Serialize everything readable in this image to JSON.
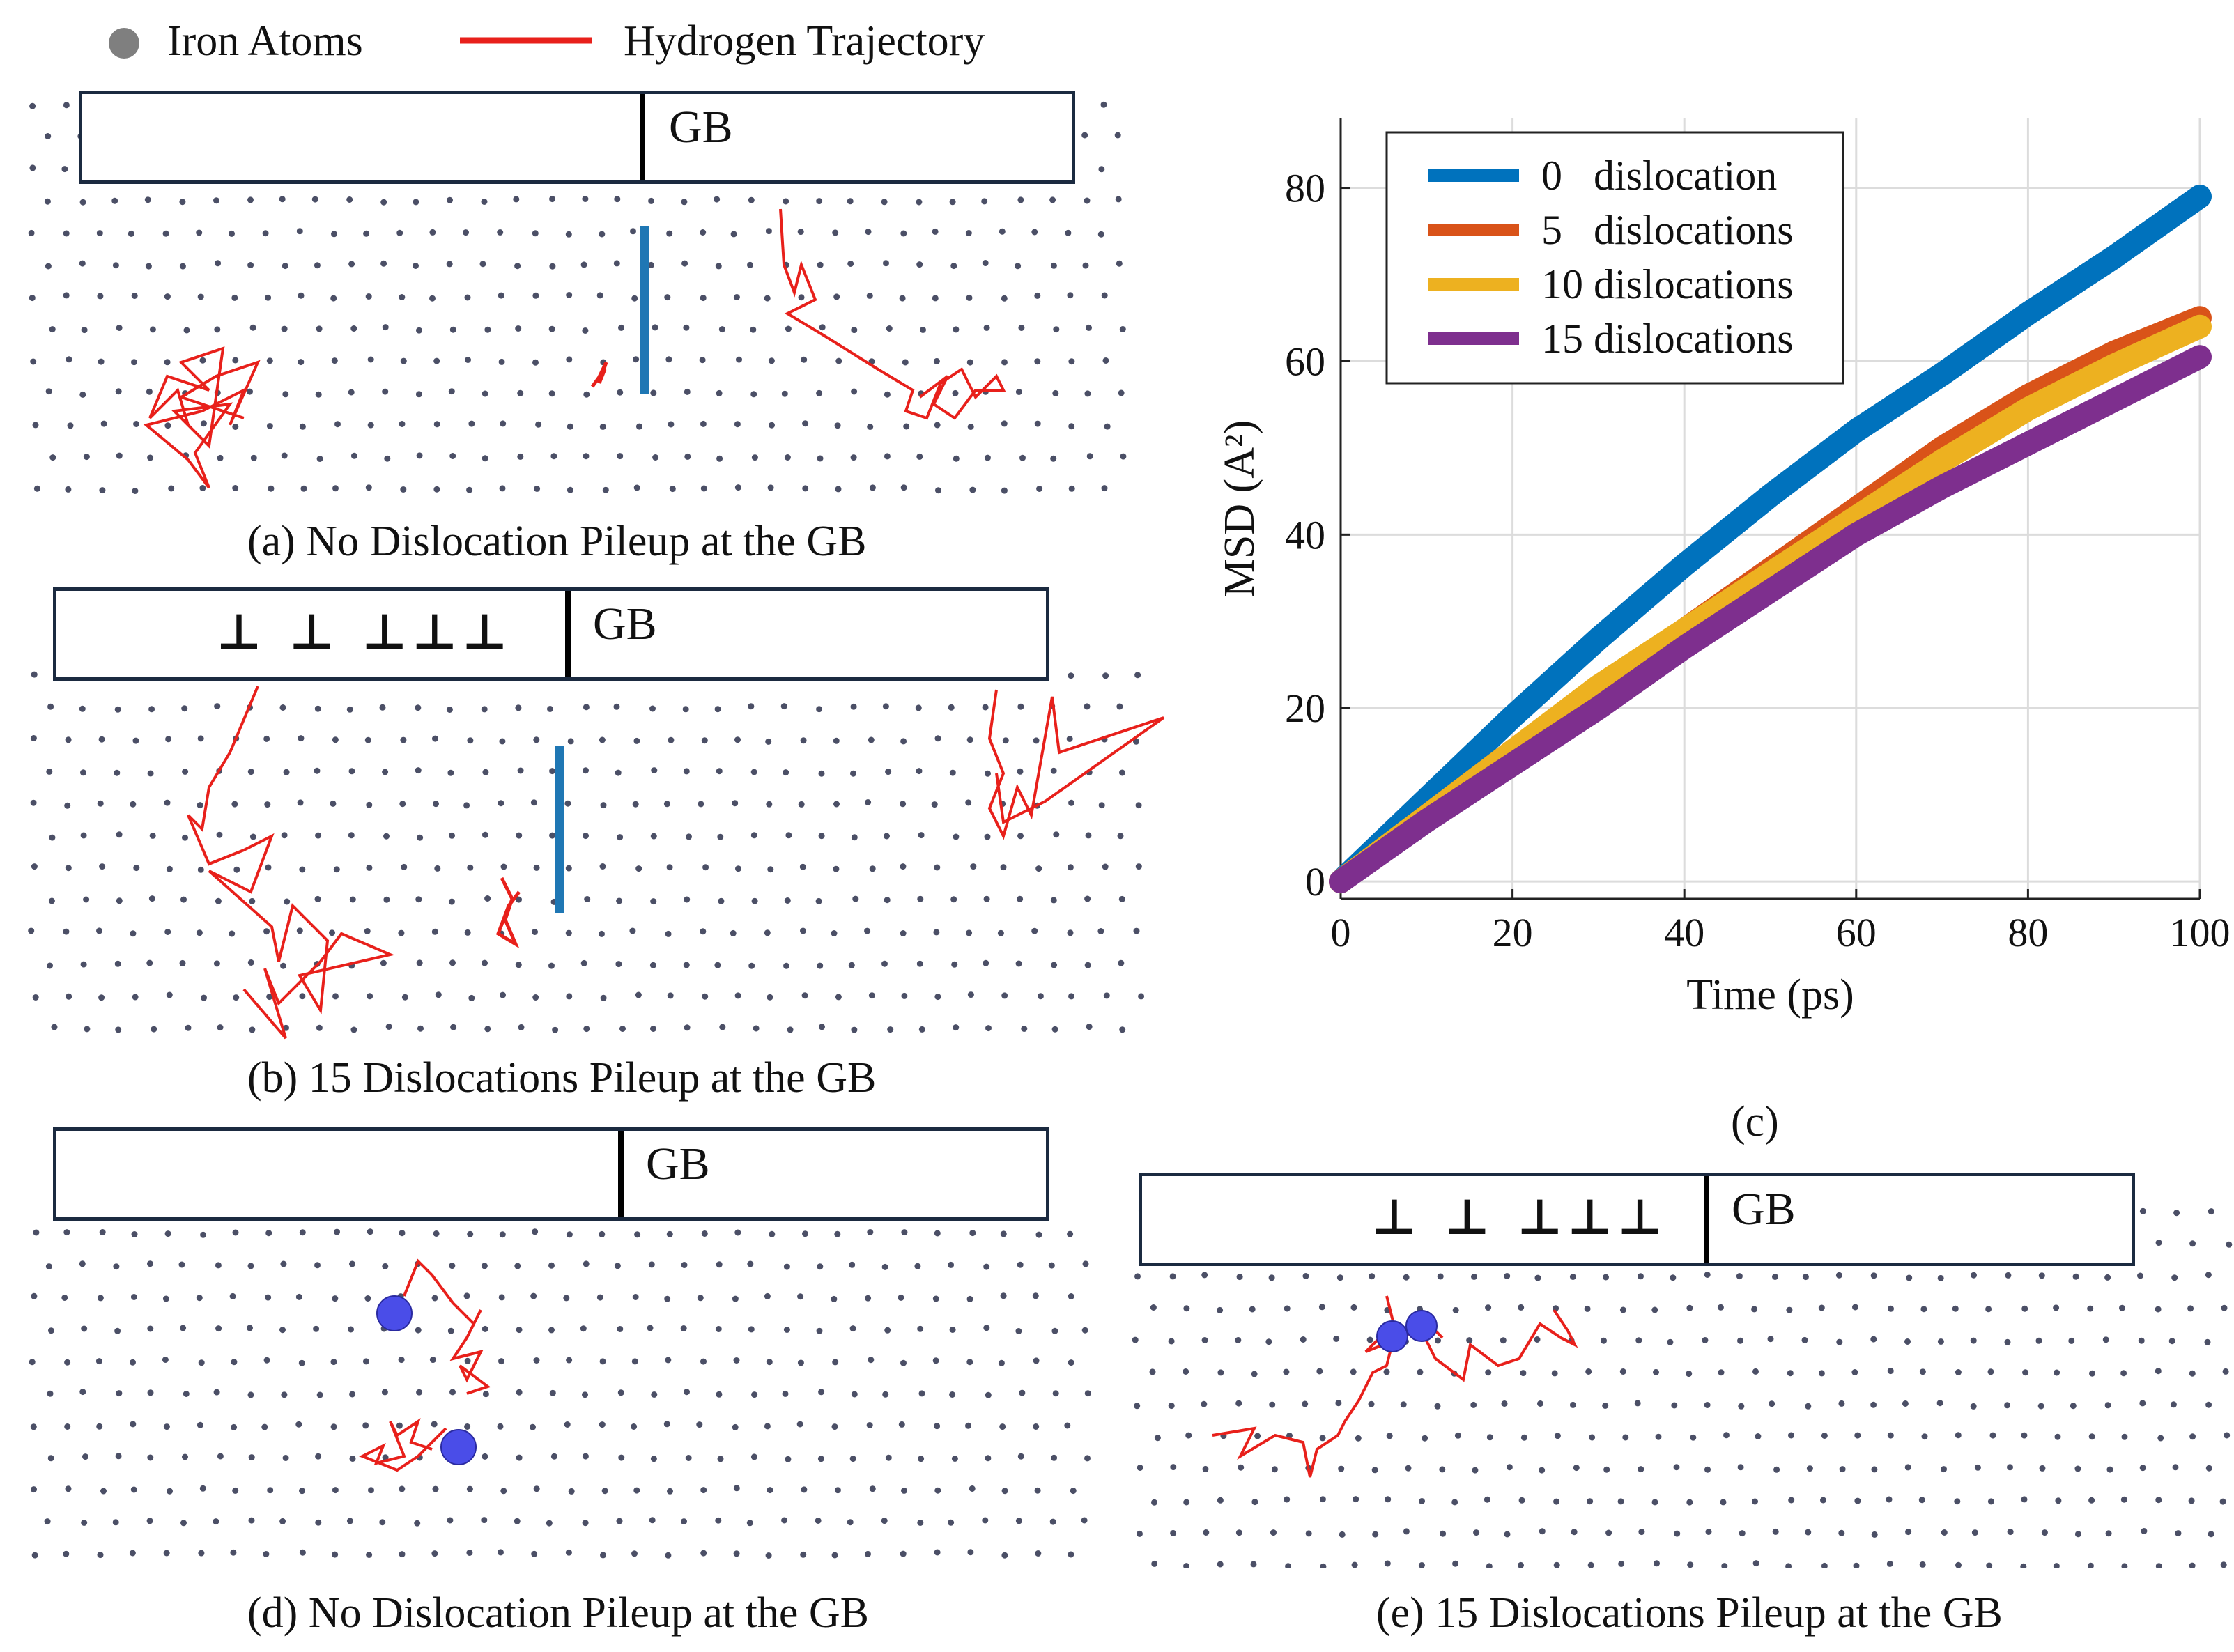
{
  "legend_top": {
    "iron_label": "Iron Atoms",
    "hydrogen_label": "Hydrogen Trajectory",
    "iron_color": "#7f7f7f",
    "hydrogen_color": "#e8201b"
  },
  "panels": {
    "a": {
      "gb_label": "GB",
      "dislocations": "",
      "caption": "(a) No Dislocation Pileup at the GB"
    },
    "b": {
      "gb_label": "GB",
      "dislocations": "⊥  ⊥ ⊥⊥⊥",
      "caption": "(b) 15 Dislocations Pileup at the GB"
    },
    "c": {
      "caption": "(c)"
    },
    "d": {
      "gb_label": "GB",
      "dislocations": "",
      "caption": "(d) No Dislocation Pileup at the GB"
    },
    "e": {
      "gb_label": "GB",
      "dislocations": "⊥  ⊥ ⊥⊥⊥",
      "caption": "(e) 15 Dislocations Pileup at the GB"
    }
  },
  "chart_data": {
    "type": "line",
    "title": "",
    "xlabel": "Time (ps)",
    "ylabel": "MSD (A²)",
    "xlim": [
      0,
      100
    ],
    "ylim": [
      -2,
      88
    ],
    "xticks": [
      0,
      20,
      40,
      60,
      80,
      100
    ],
    "yticks": [
      0,
      20,
      40,
      60,
      80
    ],
    "grid": true,
    "legend_position": "top-left",
    "series": [
      {
        "name": "0   dislocation",
        "color": "#0072bd",
        "x": [
          0,
          10,
          20,
          30,
          40,
          50,
          60,
          70,
          80,
          90,
          100
        ],
        "values": [
          0,
          9.5,
          19,
          28,
          36.5,
          44.5,
          52,
          58.5,
          65.5,
          72,
          79
        ]
      },
      {
        "name": "5   dislocations",
        "color": "#d95319",
        "x": [
          0,
          10,
          20,
          30,
          40,
          50,
          60,
          70,
          80,
          90,
          100
        ],
        "values": [
          0,
          7.5,
          15,
          22,
          29,
          36,
          43,
          50,
          56,
          61,
          65
        ]
      },
      {
        "name": "10 dislocations",
        "color": "#edb120",
        "x": [
          0,
          10,
          20,
          30,
          40,
          50,
          60,
          70,
          80,
          90,
          100
        ],
        "values": [
          0,
          7.5,
          15,
          22.5,
          29,
          35.5,
          42,
          48.5,
          54.5,
          59.5,
          64
        ]
      },
      {
        "name": "15 dislocations",
        "color": "#7e2f8e",
        "x": [
          0,
          10,
          20,
          30,
          40,
          50,
          60,
          70,
          80,
          90,
          100
        ],
        "values": [
          0,
          7,
          13.5,
          20,
          27,
          33.5,
          40,
          45.5,
          50.5,
          55.5,
          60.5
        ]
      }
    ]
  }
}
